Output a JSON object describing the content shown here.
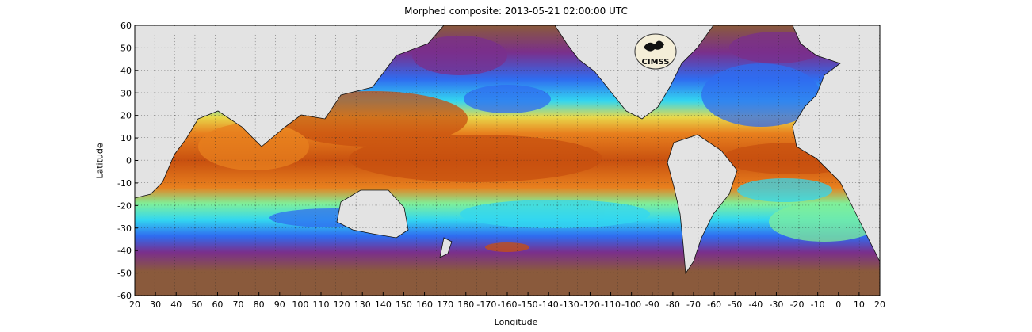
{
  "title": "Morphed composite: 2013-05-21 02:00:00 UTC",
  "axes": {
    "xlabel": "Longitude",
    "ylabel": "Latitude",
    "x_ticks": [
      "20",
      "30",
      "40",
      "50",
      "60",
      "70",
      "80",
      "90",
      "100",
      "110",
      "120",
      "130",
      "140",
      "150",
      "160",
      "170",
      "180",
      "-170",
      "-160",
      "-150",
      "-140",
      "-130",
      "-120",
      "-110",
      "-100",
      "-90",
      "-80",
      "-70",
      "-60",
      "-50",
      "-40",
      "-30",
      "-20",
      "-10",
      "0",
      "10",
      "20"
    ],
    "y_ticks": [
      "60",
      "50",
      "40",
      "30",
      "20",
      "10",
      "0",
      "-10",
      "-20",
      "-30",
      "-40",
      "-50",
      "-60"
    ]
  },
  "logo": {
    "text": "CIMSS"
  },
  "colors": {
    "land": "#e3e3e3",
    "dry": "#8a5a3c",
    "purple": "#7a2f8c",
    "blue": "#2f6cf0",
    "cyan": "#33d7f0",
    "green": "#7ff09a",
    "yellow": "#e8d84a",
    "orange": "#e8801e",
    "deep_orange": "#c8500f"
  }
}
